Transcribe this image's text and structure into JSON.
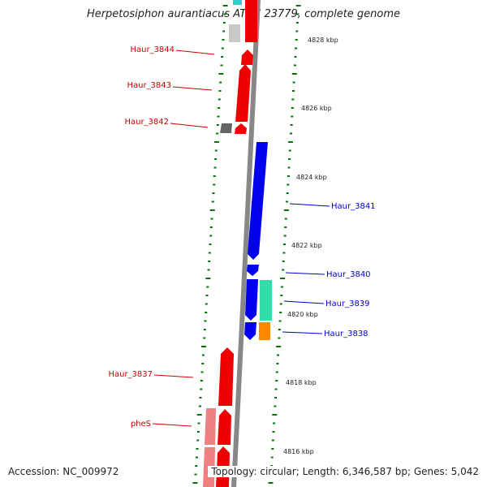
{
  "title": "Herpetosiphon aurantiacus ATCC 23779, complete genome",
  "accession": "Accession: NC_009972",
  "summary": "Topology: circular; Length: 6,346,587 bp; Genes: 5,042",
  "colors": {
    "backbone": "#888888",
    "tick": "#007700",
    "forward_label": "#cc0000",
    "reverse_label": "#0000cc",
    "red": "#ee0000",
    "pink": "#f08080",
    "gray": "#666666",
    "lightgray": "#c8c8c8",
    "blue": "#0000ee",
    "teal": "#33ddaa",
    "orange": "#ff8800",
    "cyan": "#33cccc"
  },
  "scale_labels": [
    "4828 kbp",
    "4826 kbp",
    "4824 kbp",
    "4822 kbp",
    "4820 kbp",
    "4818 kbp",
    "4816 kbp"
  ],
  "gene_labels_left": [
    "Haur_3844",
    "Haur_3843",
    "Haur_3842",
    "Haur_3837",
    "pheS"
  ],
  "gene_labels_right": [
    "Haur_3841",
    "Haur_3840",
    "Haur_3839",
    "Haur_3838"
  ]
}
